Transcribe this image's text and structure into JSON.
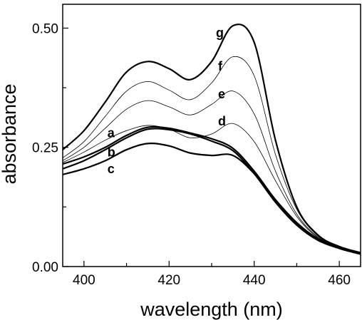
{
  "chart_data": {
    "type": "line",
    "title": "",
    "xlabel": "wavelength (nm)",
    "ylabel": "absorbance",
    "xlim": [
      395,
      465
    ],
    "ylim": [
      0.0,
      0.55
    ],
    "x_ticks": [
      400,
      420,
      440,
      460
    ],
    "x_tick_labels": [
      "400",
      "420",
      "440",
      "460"
    ],
    "y_ticks": [
      0.0,
      0.25,
      0.5
    ],
    "y_tick_labels": [
      "0.00",
      "0.25",
      "0.50"
    ],
    "grid": false,
    "legend": "none",
    "series": [
      {
        "name": "a",
        "bold": true,
        "x": [
          395,
          400,
          405,
          410,
          415,
          420,
          425,
          430,
          435,
          440,
          445,
          450,
          455,
          460,
          465
        ],
        "y": [
          0.215,
          0.23,
          0.25,
          0.275,
          0.292,
          0.29,
          0.28,
          0.268,
          0.248,
          0.2,
          0.14,
          0.09,
          0.058,
          0.04,
          0.028
        ]
      },
      {
        "name": "b",
        "bold": true,
        "x": [
          395,
          400,
          405,
          410,
          415,
          420,
          425,
          430,
          435,
          440,
          445,
          450,
          455,
          460,
          465
        ],
        "y": [
          0.205,
          0.222,
          0.245,
          0.27,
          0.288,
          0.287,
          0.278,
          0.263,
          0.243,
          0.195,
          0.135,
          0.087,
          0.055,
          0.038,
          0.026
        ]
      },
      {
        "name": "c",
        "bold": true,
        "x": [
          395,
          400,
          405,
          410,
          415,
          420,
          425,
          430,
          435,
          440,
          445,
          450,
          455,
          460,
          465
        ],
        "y": [
          0.193,
          0.205,
          0.222,
          0.245,
          0.258,
          0.253,
          0.238,
          0.233,
          0.233,
          0.195,
          0.14,
          0.092,
          0.058,
          0.04,
          0.028
        ]
      },
      {
        "name": "d",
        "bold": false,
        "x": [
          395,
          400,
          405,
          410,
          415,
          420,
          425,
          430,
          435,
          440,
          445,
          450,
          455,
          460,
          465
        ],
        "y": [
          0.218,
          0.24,
          0.265,
          0.285,
          0.296,
          0.288,
          0.27,
          0.278,
          0.3,
          0.262,
          0.18,
          0.105,
          0.06,
          0.04,
          0.028
        ]
      },
      {
        "name": "e",
        "bold": false,
        "x": [
          395,
          400,
          405,
          410,
          415,
          420,
          425,
          430,
          435,
          440,
          445,
          450,
          455,
          460,
          465
        ],
        "y": [
          0.222,
          0.25,
          0.29,
          0.33,
          0.348,
          0.335,
          0.318,
          0.34,
          0.368,
          0.32,
          0.2,
          0.11,
          0.062,
          0.04,
          0.028
        ]
      },
      {
        "name": "f",
        "bold": false,
        "x": [
          395,
          400,
          405,
          410,
          415,
          420,
          425,
          430,
          435,
          440,
          445,
          450,
          455,
          460,
          465
        ],
        "y": [
          0.228,
          0.262,
          0.315,
          0.368,
          0.388,
          0.37,
          0.35,
          0.385,
          0.44,
          0.4,
          0.235,
          0.12,
          0.064,
          0.041,
          0.028
        ]
      },
      {
        "name": "g",
        "bold": true,
        "x": [
          395,
          400,
          405,
          410,
          415,
          420,
          425,
          430,
          435,
          440,
          445,
          450,
          455,
          460,
          465
        ],
        "y": [
          0.245,
          0.285,
          0.345,
          0.408,
          0.43,
          0.415,
          0.392,
          0.43,
          0.505,
          0.47,
          0.265,
          0.125,
          0.066,
          0.042,
          0.029
        ]
      }
    ],
    "annotations": [
      {
        "text": "a",
        "x": 405.5,
        "y": 0.28
      },
      {
        "text": "b",
        "x": 405.5,
        "y": 0.24
      },
      {
        "text": "c",
        "x": 405.5,
        "y": 0.205
      },
      {
        "text": "d",
        "x": 431.5,
        "y": 0.305
      },
      {
        "text": "e",
        "x": 431.5,
        "y": 0.362
      },
      {
        "text": "f",
        "x": 431.5,
        "y": 0.42
      },
      {
        "text": "g",
        "x": 431.0,
        "y": 0.49
      }
    ]
  }
}
